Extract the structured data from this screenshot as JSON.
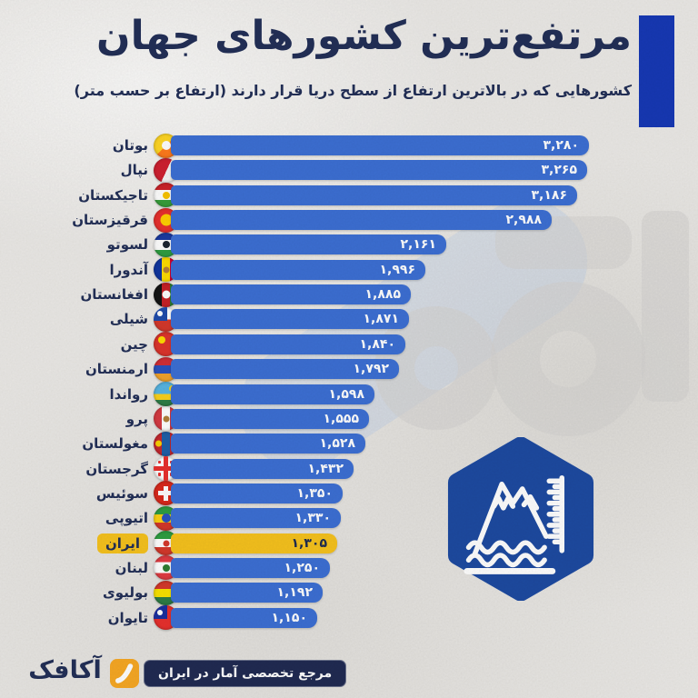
{
  "header": {
    "title": "مرتفع‌ترین کشورهای جهان",
    "subtitle": "کشورهایی که در بالاترین ارتفاع از سطح دریا قرار دارند (ارتفاع بر حسب متر)"
  },
  "colors": {
    "background": "#eceae7",
    "accent": "#1638b5",
    "label": "#222f57",
    "bar": "#3c6fd4",
    "highlight": "#f6c21d",
    "value_text": "#ffffff",
    "highlight_text": "#1d2b52",
    "badge": "#1d4aa1",
    "footer_pill": "#202a52",
    "logo_orange": "#f7a823"
  },
  "badge": {
    "icon": "mountain-sea-level-icon"
  },
  "footer": {
    "tagline": "مرجع تخصصی آمار در ایران",
    "brand": "آکافک",
    "logo_icon": "akafek-swoosh-icon"
  },
  "chart_data": {
    "type": "bar",
    "orientation": "horizontal",
    "title": "مرتفع‌ترین کشورهای جهان",
    "unit": "متر",
    "xlim": [
      0,
      3280
    ],
    "grid": false,
    "highlight_index": 16,
    "rows": [
      {
        "id": "bhutan",
        "country": "بوتان",
        "value": 3280,
        "value_fa": "۳,۲۸۰",
        "flag": {
          "dir": "d",
          "stripes": [
            "#ffd623",
            "#ff7a1c"
          ],
          "emblem": "#ffffff",
          "emblem_size": 10
        }
      },
      {
        "id": "nepal",
        "country": "نپال",
        "value": 3265,
        "value_fa": "۳,۲۶۵",
        "flag": {
          "dir": "d",
          "angle": 115,
          "stripes": [
            "#cf2030",
            "#f5f5f5"
          ],
          "stops": [
            52,
            48
          ]
        }
      },
      {
        "id": "tajikistan",
        "country": "تاجیکستان",
        "value": 3186,
        "value_fa": "۳,۱۸۶",
        "flag": {
          "dir": "h",
          "stripes": [
            "#cc2229",
            "#ffffff",
            "#379e3a"
          ],
          "stops": [
            30,
            40,
            30
          ],
          "emblem": "#f8c300",
          "emblem_size": 8
        }
      },
      {
        "id": "kyrgyzstan",
        "country": "قرقیزستان",
        "value": 2988,
        "value_fa": "۲,۹۸۸",
        "flag": {
          "color": "#e8302d",
          "emblem": "#ffcf00",
          "emblem_size": 13
        }
      },
      {
        "id": "lesotho",
        "country": "لسوتو",
        "value": 2161,
        "value_fa": "۲,۱۶۱",
        "flag": {
          "dir": "h",
          "stripes": [
            "#1b3aa0",
            "#ffffff",
            "#2e9e41"
          ],
          "stops": [
            30,
            40,
            30
          ],
          "emblem": "#1b2430",
          "emblem_size": 8
        }
      },
      {
        "id": "andorra",
        "country": "آندورا",
        "value": 1996,
        "value_fa": "۱,۹۹۶",
        "flag": {
          "dir": "v",
          "stripes": [
            "#1036a0",
            "#fedd00",
            "#d50032"
          ],
          "emblem": "#b5803a",
          "emblem_size": 7
        }
      },
      {
        "id": "afghanistan",
        "country": "افغانستان",
        "value": 1885,
        "value_fa": "۱,۸۸۵",
        "flag": {
          "dir": "v",
          "stripes": [
            "#141414",
            "#c72025",
            "#2e7d32"
          ],
          "emblem": "#ffffff",
          "emblem_size": 9
        }
      },
      {
        "id": "chile",
        "country": "شیلی",
        "value": 1871,
        "value_fa": "۱,۸۷۱",
        "flag": {
          "dir": "h",
          "stripes": [
            "#ffffff",
            "#d5382b"
          ],
          "stops": [
            50,
            50
          ],
          "canton": "#1f4bab",
          "canton_dot": true
        }
      },
      {
        "id": "china",
        "country": "چین",
        "value": 1840,
        "value_fa": "۱,۸۴۰",
        "flag": {
          "color": "#dd342c",
          "emblem": "#ffdd00",
          "emblem_size": 8,
          "emblem_pos": "tl"
        }
      },
      {
        "id": "armenia",
        "country": "ارمنستان",
        "value": 1792,
        "value_fa": "۱,۷۹۲",
        "flag": {
          "dir": "h",
          "stripes": [
            "#d42e35",
            "#2a52be",
            "#f2a32b"
          ]
        }
      },
      {
        "id": "rwanda",
        "country": "رواندا",
        "value": 1598,
        "value_fa": "۱,۵۹۸",
        "flag": {
          "dir": "h",
          "stripes": [
            "#57b5e3",
            "#fad21b",
            "#2e7d46"
          ],
          "stops": [
            50,
            25,
            25
          ],
          "emblem": "#fad21b",
          "emblem_size": 7,
          "emblem_pos": "tr"
        }
      },
      {
        "id": "peru",
        "country": "پرو",
        "value": 1555,
        "value_fa": "۱,۵۵۵",
        "flag": {
          "dir": "v",
          "stripes": [
            "#d63a42",
            "#ffffff",
            "#d63a42"
          ],
          "emblem": "#b0803a",
          "emblem_size": 7
        }
      },
      {
        "id": "mongolia",
        "country": "مغولستان",
        "value": 1528,
        "value_fa": "۱,۵۲۸",
        "flag": {
          "dir": "v",
          "stripes": [
            "#c4272f",
            "#1f5fa8",
            "#c4272f"
          ],
          "emblem": "#f9cf02",
          "emblem_size": 7,
          "emblem_pos": "l"
        }
      },
      {
        "id": "georgia",
        "country": "گرجستان",
        "value": 1432,
        "value_fa": "۱,۴۳۲",
        "flag": {
          "color": "#ffffff",
          "cross": "#e8302d",
          "cross_full": true
        }
      },
      {
        "id": "switzerland",
        "country": "سوئیس",
        "value": 1350,
        "value_fa": "۱,۳۵۰",
        "flag": {
          "color": "#da291c",
          "cross": "#ffffff"
        }
      },
      {
        "id": "ethiopia",
        "country": "اتیوپی",
        "value": 1330,
        "value_fa": "۱,۳۳۰",
        "flag": {
          "dir": "h",
          "stripes": [
            "#2e9e41",
            "#fcd212",
            "#d5382b"
          ],
          "emblem": "#2a52be",
          "emblem_size": 10
        }
      },
      {
        "id": "iran",
        "country": "ایران",
        "value": 1305,
        "value_fa": "۱,۳۰۵",
        "highlight": true,
        "flag": {
          "dir": "h",
          "stripes": [
            "#2e9e41",
            "#ffffff",
            "#d5382b"
          ],
          "emblem": "#d5382b",
          "emblem_size": 7
        }
      },
      {
        "id": "lebanon",
        "country": "لبنان",
        "value": 1250,
        "value_fa": "۱,۲۵۰",
        "flag": {
          "dir": "h",
          "stripes": [
            "#e23b42",
            "#ffffff",
            "#e23b42"
          ],
          "stops": [
            28,
            44,
            28
          ],
          "emblem": "#2e7d32",
          "emblem_size": 8
        }
      },
      {
        "id": "bolivia",
        "country": "بولیوی",
        "value": 1192,
        "value_fa": "۱,۱۹۲",
        "flag": {
          "dir": "h",
          "stripes": [
            "#d5382b",
            "#f9e300",
            "#2e7d46"
          ]
        }
      },
      {
        "id": "taiwan",
        "country": "تایوان",
        "value": 1150,
        "value_fa": "۱,۱۵۰",
        "flag": {
          "color": "#e8302d",
          "canton": "#1a2f9e",
          "canton_dot": true
        }
      }
    ]
  }
}
